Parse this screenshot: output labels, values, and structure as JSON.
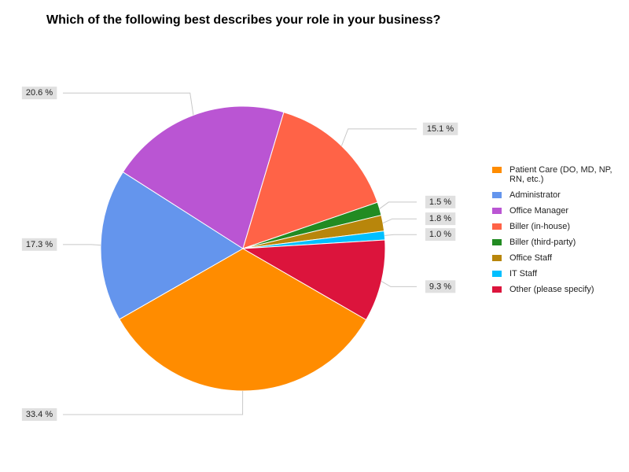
{
  "chart_data": {
    "type": "pie",
    "title": "Which of the following best describes your role in your business?",
    "categories": [
      "Patient Care (DO, MD, NP, RN, etc.)",
      "Administrator",
      "Office Manager",
      "Biller (in-house)",
      "Biller (third-party)",
      "Office Staff",
      "IT Staff",
      "Other (please specify)"
    ],
    "values": [
      33.4,
      17.3,
      20.6,
      15.1,
      1.5,
      1.8,
      1.0,
      9.3
    ],
    "value_labels": [
      "33.4 %",
      "17.3 %",
      "20.6 %",
      "15.1 %",
      "1.5 %",
      "1.8 %",
      "1.0 %",
      "9.3 %"
    ],
    "colors": [
      "#ff8c00",
      "#6495ed",
      "#ba55d3",
      "#ff6347",
      "#228b22",
      "#b8860b",
      "#00bfff",
      "#dc143c"
    ],
    "legend": "right"
  }
}
